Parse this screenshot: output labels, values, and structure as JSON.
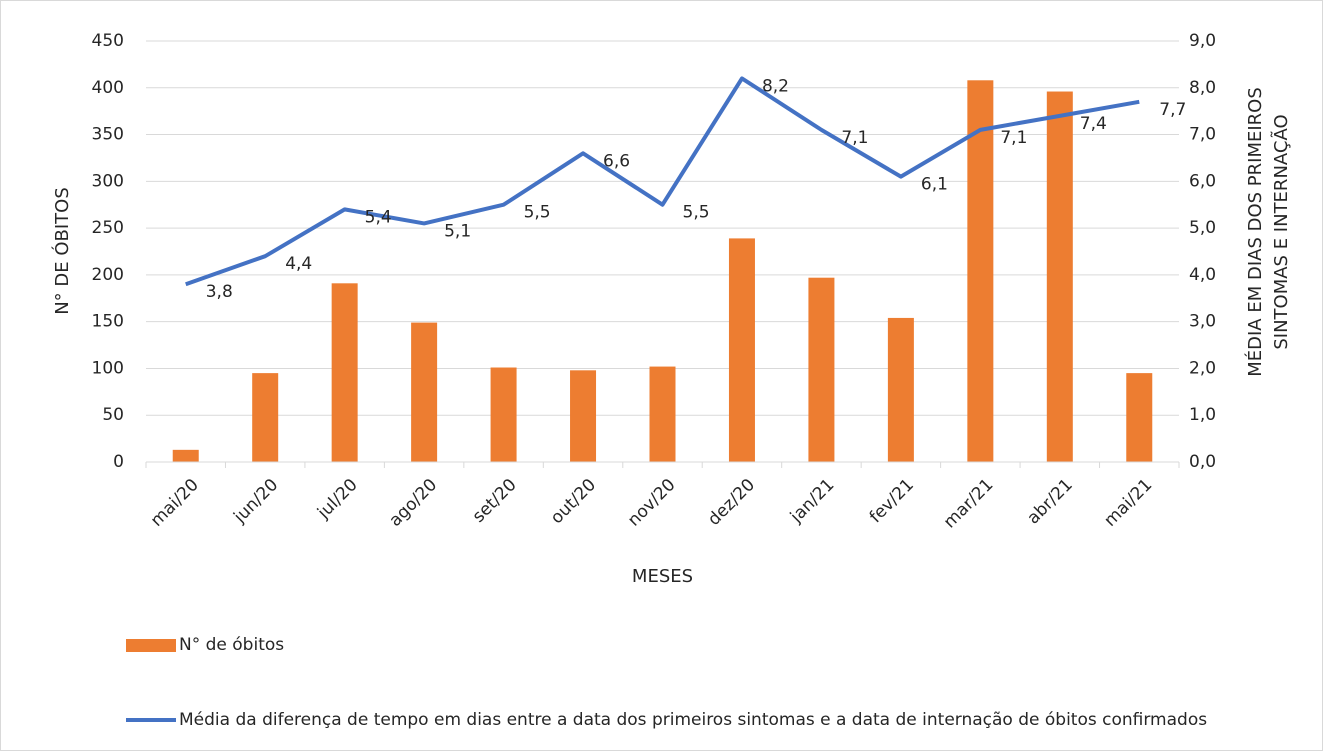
{
  "chart_data": {
    "type": "bar",
    "x_label": "MESES",
    "y_label": "N° DE ÓBITOS",
    "y2_label": "MÉDIA EM DIAS DOS PRIMEIROS SINTOMAS E INTERNAÇÃO",
    "categories": [
      "mai/20",
      "jun/20",
      "jul/20",
      "ago/20",
      "set/20",
      "out/20",
      "nov/20",
      "dez/20",
      "jan/21",
      "fev/21",
      "mar/21",
      "abr/21",
      "mai/21"
    ],
    "series": [
      {
        "name": "N° de óbitos",
        "type": "bar",
        "color": "#ed7d31",
        "values": [
          13,
          95,
          191,
          149,
          101,
          98,
          102,
          239,
          197,
          154,
          408,
          396,
          95
        ]
      },
      {
        "name": "Média da diferença de tempo em dias entre a data dos primeiros sintomas e a data de internação de óbitos confirmados",
        "type": "line",
        "axis": "y2",
        "color": "#4472c4",
        "values": [
          3.8,
          4.4,
          5.4,
          5.1,
          5.5,
          6.6,
          5.5,
          8.2,
          7.1,
          6.1,
          7.1,
          7.4,
          7.7
        ],
        "value_labels": [
          "3,8",
          "4,4",
          "5,4",
          "5,1",
          "5,5",
          "6,6",
          "5,5",
          "8,2",
          "7,1",
          "6,1",
          "7,1",
          "7,4",
          "7,7"
        ]
      }
    ],
    "ylim": [
      0,
      450
    ],
    "yticks": [
      0,
      50,
      100,
      150,
      200,
      250,
      300,
      350,
      400,
      450
    ],
    "y2lim": [
      0,
      9
    ],
    "y2ticks": [
      {
        "value": 0,
        "label": "0,0"
      },
      {
        "value": 1,
        "label": "1,0"
      },
      {
        "value": 2,
        "label": "2,0"
      },
      {
        "value": 3,
        "label": "3,0"
      },
      {
        "value": 4,
        "label": "4,0"
      },
      {
        "value": 5,
        "label": "5,0"
      },
      {
        "value": 6,
        "label": "6,0"
      },
      {
        "value": 7,
        "label": "7,0"
      },
      {
        "value": 8,
        "label": "8,0"
      },
      {
        "value": 9,
        "label": "9,0"
      }
    ],
    "grid": true,
    "legend": "bottom"
  }
}
